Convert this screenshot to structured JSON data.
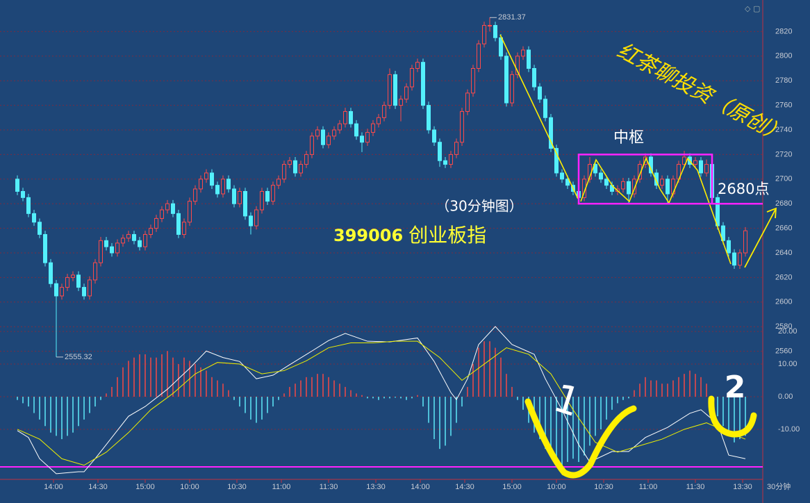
{
  "chart_data": {
    "type": "candlestick",
    "up_color": "#ff4a4a",
    "down_color": "#54f0fc",
    "ylim": [
      2453,
      2840
    ],
    "yticks": [
      2560,
      2580,
      2600,
      2620,
      2640,
      2660,
      2680,
      2700,
      2720,
      2740,
      2760,
      2780,
      2800,
      2820
    ],
    "grid": true,
    "candles": [
      [
        2700,
        2703,
        2687,
        2690
      ],
      [
        2690,
        2693,
        2682,
        2685
      ],
      [
        2685,
        2688,
        2669,
        2672
      ],
      [
        2672,
        2675,
        2662,
        2665
      ],
      [
        2665,
        2668,
        2652,
        2655
      ],
      [
        2655,
        2658,
        2629,
        2632
      ],
      [
        2632,
        2635,
        2612,
        2615
      ],
      [
        2615,
        2618,
        2555.32,
        2605
      ],
      [
        2605,
        2615,
        2602,
        2612
      ],
      [
        2612,
        2623,
        2609,
        2620
      ],
      [
        2620,
        2625,
        2617,
        2622
      ],
      [
        2622,
        2625,
        2609,
        2612
      ],
      [
        2612,
        2615,
        2602,
        2605
      ],
      [
        2605,
        2621,
        2602,
        2618
      ],
      [
        2618,
        2635,
        2615,
        2632
      ],
      [
        2632,
        2653,
        2629,
        2650
      ],
      [
        2650,
        2653,
        2642,
        2645
      ],
      [
        2645,
        2648,
        2637,
        2640
      ],
      [
        2640,
        2651,
        2637,
        2648
      ],
      [
        2648,
        2655,
        2645,
        2652
      ],
      [
        2652,
        2658,
        2649,
        2655
      ],
      [
        2655,
        2658,
        2647,
        2650
      ],
      [
        2650,
        2653,
        2642,
        2645
      ],
      [
        2645,
        2658,
        2642,
        2655
      ],
      [
        2655,
        2663,
        2652,
        2660
      ],
      [
        2660,
        2671,
        2657,
        2668
      ],
      [
        2668,
        2678,
        2665,
        2675
      ],
      [
        2675,
        2683,
        2672,
        2680
      ],
      [
        2680,
        2683,
        2669,
        2672
      ],
      [
        2672,
        2675,
        2652,
        2655
      ],
      [
        2655,
        2668,
        2652,
        2665
      ],
      [
        2665,
        2685,
        2662,
        2682
      ],
      [
        2682,
        2695,
        2679,
        2692
      ],
      [
        2692,
        2703,
        2689,
        2700
      ],
      [
        2700,
        2708,
        2697,
        2705
      ],
      [
        2705,
        2708,
        2692,
        2695
      ],
      [
        2695,
        2698,
        2685,
        2688
      ],
      [
        2688,
        2703,
        2685,
        2700
      ],
      [
        2700,
        2703,
        2689,
        2692
      ],
      [
        2692,
        2695,
        2677,
        2680
      ],
      [
        2680,
        2693,
        2677,
        2690
      ],
      [
        2690,
        2693,
        2667,
        2670
      ],
      [
        2670,
        2673,
        2655,
        2662
      ],
      [
        2662,
        2678,
        2659,
        2675
      ],
      [
        2675,
        2693,
        2672,
        2690
      ],
      [
        2690,
        2693,
        2679,
        2682
      ],
      [
        2682,
        2698,
        2679,
        2695
      ],
      [
        2695,
        2703,
        2692,
        2700
      ],
      [
        2700,
        2715,
        2697,
        2712
      ],
      [
        2712,
        2718,
        2709,
        2715
      ],
      [
        2715,
        2718,
        2702,
        2705
      ],
      [
        2705,
        2715,
        2702,
        2712
      ],
      [
        2712,
        2723,
        2709,
        2720
      ],
      [
        2720,
        2738,
        2717,
        2735
      ],
      [
        2735,
        2743,
        2732,
        2740
      ],
      [
        2740,
        2743,
        2725,
        2728
      ],
      [
        2728,
        2738,
        2725,
        2735
      ],
      [
        2735,
        2743,
        2732,
        2740
      ],
      [
        2740,
        2748,
        2737,
        2745
      ],
      [
        2745,
        2758,
        2742,
        2755
      ],
      [
        2755,
        2758,
        2742,
        2745
      ],
      [
        2745,
        2748,
        2732,
        2735
      ],
      [
        2735,
        2738,
        2722,
        2730
      ],
      [
        2730,
        2741,
        2727,
        2738
      ],
      [
        2738,
        2748,
        2735,
        2745
      ],
      [
        2745,
        2753,
        2742,
        2750
      ],
      [
        2750,
        2763,
        2747,
        2760
      ],
      [
        2760,
        2790,
        2757,
        2785
      ],
      [
        2785,
        2788,
        2757,
        2760
      ],
      [
        2760,
        2768,
        2747,
        2765
      ],
      [
        2765,
        2778,
        2762,
        2775
      ],
      [
        2775,
        2793,
        2772,
        2790
      ],
      [
        2790,
        2798,
        2787,
        2795
      ],
      [
        2795,
        2798,
        2757,
        2760
      ],
      [
        2760,
        2763,
        2737,
        2740
      ],
      [
        2740,
        2743,
        2727,
        2730
      ],
      [
        2730,
        2733,
        2710,
        2715
      ],
      [
        2715,
        2718,
        2709,
        2712
      ],
      [
        2712,
        2723,
        2709,
        2720
      ],
      [
        2720,
        2733,
        2717,
        2730
      ],
      [
        2730,
        2758,
        2727,
        2755
      ],
      [
        2755,
        2773,
        2752,
        2770
      ],
      [
        2770,
        2793,
        2767,
        2790
      ],
      [
        2790,
        2813,
        2787,
        2810
      ],
      [
        2810,
        2828,
        2807,
        2825
      ],
      [
        2825,
        2831.37,
        2820,
        2825
      ],
      [
        2825,
        2828,
        2812,
        2815
      ],
      [
        2815,
        2818,
        2797,
        2800
      ],
      [
        2800,
        2803,
        2759,
        2762
      ],
      [
        2762,
        2788,
        2759,
        2785
      ],
      [
        2785,
        2803,
        2782,
        2800
      ],
      [
        2800,
        2808,
        2797,
        2805
      ],
      [
        2805,
        2808,
        2787,
        2790
      ],
      [
        2790,
        2793,
        2772,
        2775
      ],
      [
        2775,
        2778,
        2762,
        2765
      ],
      [
        2765,
        2768,
        2747,
        2750
      ],
      [
        2750,
        2753,
        2722,
        2725
      ],
      [
        2725,
        2728,
        2702,
        2705
      ],
      [
        2705,
        2708,
        2697,
        2700
      ],
      [
        2700,
        2703,
        2692,
        2695
      ],
      [
        2695,
        2698,
        2687,
        2690
      ],
      [
        2690,
        2693,
        2680,
        2685
      ],
      [
        2685,
        2703,
        2682,
        2700
      ],
      [
        2700,
        2718,
        2697,
        2712
      ],
      [
        2712,
        2715,
        2702,
        2705
      ],
      [
        2705,
        2708,
        2697,
        2700
      ],
      [
        2700,
        2703,
        2692,
        2695
      ],
      [
        2695,
        2698,
        2687,
        2690
      ],
      [
        2690,
        2695,
        2687,
        2692
      ],
      [
        2692,
        2701,
        2689,
        2698
      ],
      [
        2698,
        2701,
        2680,
        2688
      ],
      [
        2688,
        2703,
        2685,
        2700
      ],
      [
        2700,
        2715,
        2697,
        2712
      ],
      [
        2712,
        2721,
        2709,
        2718
      ],
      [
        2718,
        2721,
        2702,
        2705
      ],
      [
        2705,
        2708,
        2692,
        2695
      ],
      [
        2695,
        2703,
        2692,
        2700
      ],
      [
        2700,
        2703,
        2680,
        2688
      ],
      [
        2688,
        2703,
        2685,
        2700
      ],
      [
        2700,
        2715,
        2697,
        2712
      ],
      [
        2712,
        2723,
        2709,
        2718
      ],
      [
        2718,
        2721,
        2709,
        2712
      ],
      [
        2712,
        2718,
        2709,
        2715
      ],
      [
        2715,
        2718,
        2702,
        2705
      ],
      [
        2705,
        2716,
        2702,
        2712
      ],
      [
        2712,
        2715,
        2682,
        2685
      ],
      [
        2685,
        2688,
        2659,
        2662
      ],
      [
        2662,
        2665,
        2647,
        2650
      ],
      [
        2650,
        2653,
        2637,
        2640
      ],
      [
        2640,
        2643,
        2627,
        2630
      ],
      [
        2630,
        2643,
        2627,
        2640
      ],
      [
        2640,
        2661,
        2637,
        2658
      ]
    ],
    "extremes": [
      {
        "index": 85,
        "value": 2831.37
      },
      {
        "index": 7,
        "value": 2555.32
      }
    ],
    "xticks": [
      {
        "value": 6.5,
        "label": "14:00"
      },
      {
        "value": 14.5,
        "label": "14:30"
      },
      {
        "value": 23,
        "label": "15:00"
      },
      {
        "value": 31,
        "label": "10:00"
      },
      {
        "value": 39.5,
        "label": "10:30"
      },
      {
        "value": 47.5,
        "label": "11:00"
      },
      {
        "value": 56,
        "label": "11:30"
      },
      {
        "value": 64.5,
        "label": "13:30"
      },
      {
        "value": 72.5,
        "label": "14:00"
      },
      {
        "value": 80.5,
        "label": "14:30"
      },
      {
        "value": 89,
        "label": "15:00"
      },
      {
        "value": 97,
        "label": "10:00"
      },
      {
        "value": 105.5,
        "label": "10:30"
      },
      {
        "value": 113.5,
        "label": "11:00"
      },
      {
        "value": 122,
        "label": "11:30"
      },
      {
        "value": 130.5,
        "label": "13:30"
      }
    ],
    "x_unit": "30分钟",
    "title_code": "399006",
    "title_name": "创业板指",
    "subtitle": "（30分钟图）",
    "watermark": "红茶聊投资（原创）",
    "box": {
      "label": "中枢",
      "low": 2680,
      "high": 2720,
      "x": [
        101,
        125
      ]
    },
    "level": 2680,
    "level_label": "2680点",
    "marks": [
      "1",
      "2"
    ],
    "macd": {
      "ylim": [
        -26.4,
        24.7
      ],
      "yticks": [
        {
          "value": 20,
          "label": "20.00"
        },
        {
          "value": 10,
          "label": "10.00"
        },
        {
          "value": 0,
          "label": "0.00"
        },
        {
          "value": -10,
          "label": "-10.00"
        }
      ],
      "hline": -21.5,
      "histogram": [
        -1,
        -2,
        -3,
        -5,
        -7,
        -9,
        -11,
        -12,
        -13,
        -12,
        -11,
        -9,
        -7,
        -5,
        -3,
        -1,
        1,
        3,
        6,
        9,
        11,
        12,
        13,
        13,
        12,
        12,
        13,
        14,
        12,
        10,
        12,
        11,
        10,
        9,
        8,
        6,
        5,
        4,
        2,
        -1,
        -3,
        -5,
        -7,
        -8,
        -7,
        -5,
        -3,
        -1,
        1,
        3,
        4,
        5,
        6,
        6,
        7,
        7,
        6,
        5,
        4,
        3,
        2,
        1,
        0.5,
        -0.5,
        -0.5,
        -1,
        -0.5,
        -0.5,
        -0.3,
        -0.5,
        -1,
        -0.5,
        0.5,
        -3,
        -8,
        -13,
        -16,
        -15,
        -12,
        -8,
        -3,
        3,
        10,
        15,
        17,
        17,
        15,
        12,
        7,
        3,
        -1,
        -4,
        -8,
        -11,
        -13,
        -16,
        -18,
        -20,
        -21,
        -20,
        -19,
        -20,
        -18,
        -15,
        -12,
        -10,
        -7,
        -4,
        -2,
        -1,
        -0.5,
        2,
        4,
        6,
        5,
        5,
        4,
        4,
        5,
        6,
        7,
        8,
        7,
        6,
        4,
        -2,
        -6,
        -9,
        -12,
        -14,
        -13,
        -12
      ],
      "dif": {
        "x": [
          0,
          2,
          4,
          7,
          11,
          12,
          14,
          17,
          20,
          23,
          27,
          31,
          34,
          37,
          40,
          43,
          46,
          49,
          53,
          56,
          59,
          63,
          67,
          72,
          75,
          78,
          79,
          81,
          83,
          86,
          89,
          93,
          95,
          98,
          101,
          103,
          107,
          110,
          113,
          117,
          121,
          123,
          126,
          128,
          131
        ],
        "values": [
          -10.4,
          -12.5,
          -19,
          -23.6,
          -23,
          -23,
          -19,
          -12.5,
          -6,
          -3,
          2.3,
          8.7,
          14,
          12,
          10.8,
          5.5,
          6.6,
          9.8,
          14,
          17.2,
          19.4,
          17,
          16.8,
          18,
          10.8,
          1.3,
          -0.9,
          5.5,
          16,
          21.5,
          16,
          13,
          5.5,
          -4,
          -14.7,
          -20,
          -16.8,
          -16.8,
          -12.5,
          -9.4,
          -5.1,
          -4,
          -8.3,
          -17.9,
          -19
        ]
      },
      "dea": {
        "x": [
          0,
          4,
          8,
          12,
          16,
          20,
          24,
          28,
          32,
          36,
          40,
          44,
          48,
          52,
          56,
          60,
          64,
          68,
          72,
          76,
          80,
          84,
          88,
          92,
          96,
          100,
          104,
          108,
          112,
          116,
          120,
          124,
          128,
          131
        ],
        "values": [
          -10,
          -13,
          -19,
          -21,
          -17,
          -11,
          -4,
          1,
          7,
          10.5,
          10,
          7,
          8,
          11,
          15,
          16.5,
          16.5,
          17,
          17,
          12,
          5,
          10,
          15,
          13,
          7,
          -4,
          -14,
          -17,
          -15,
          -13,
          -10,
          -8,
          -11,
          -13
        ]
      }
    }
  }
}
